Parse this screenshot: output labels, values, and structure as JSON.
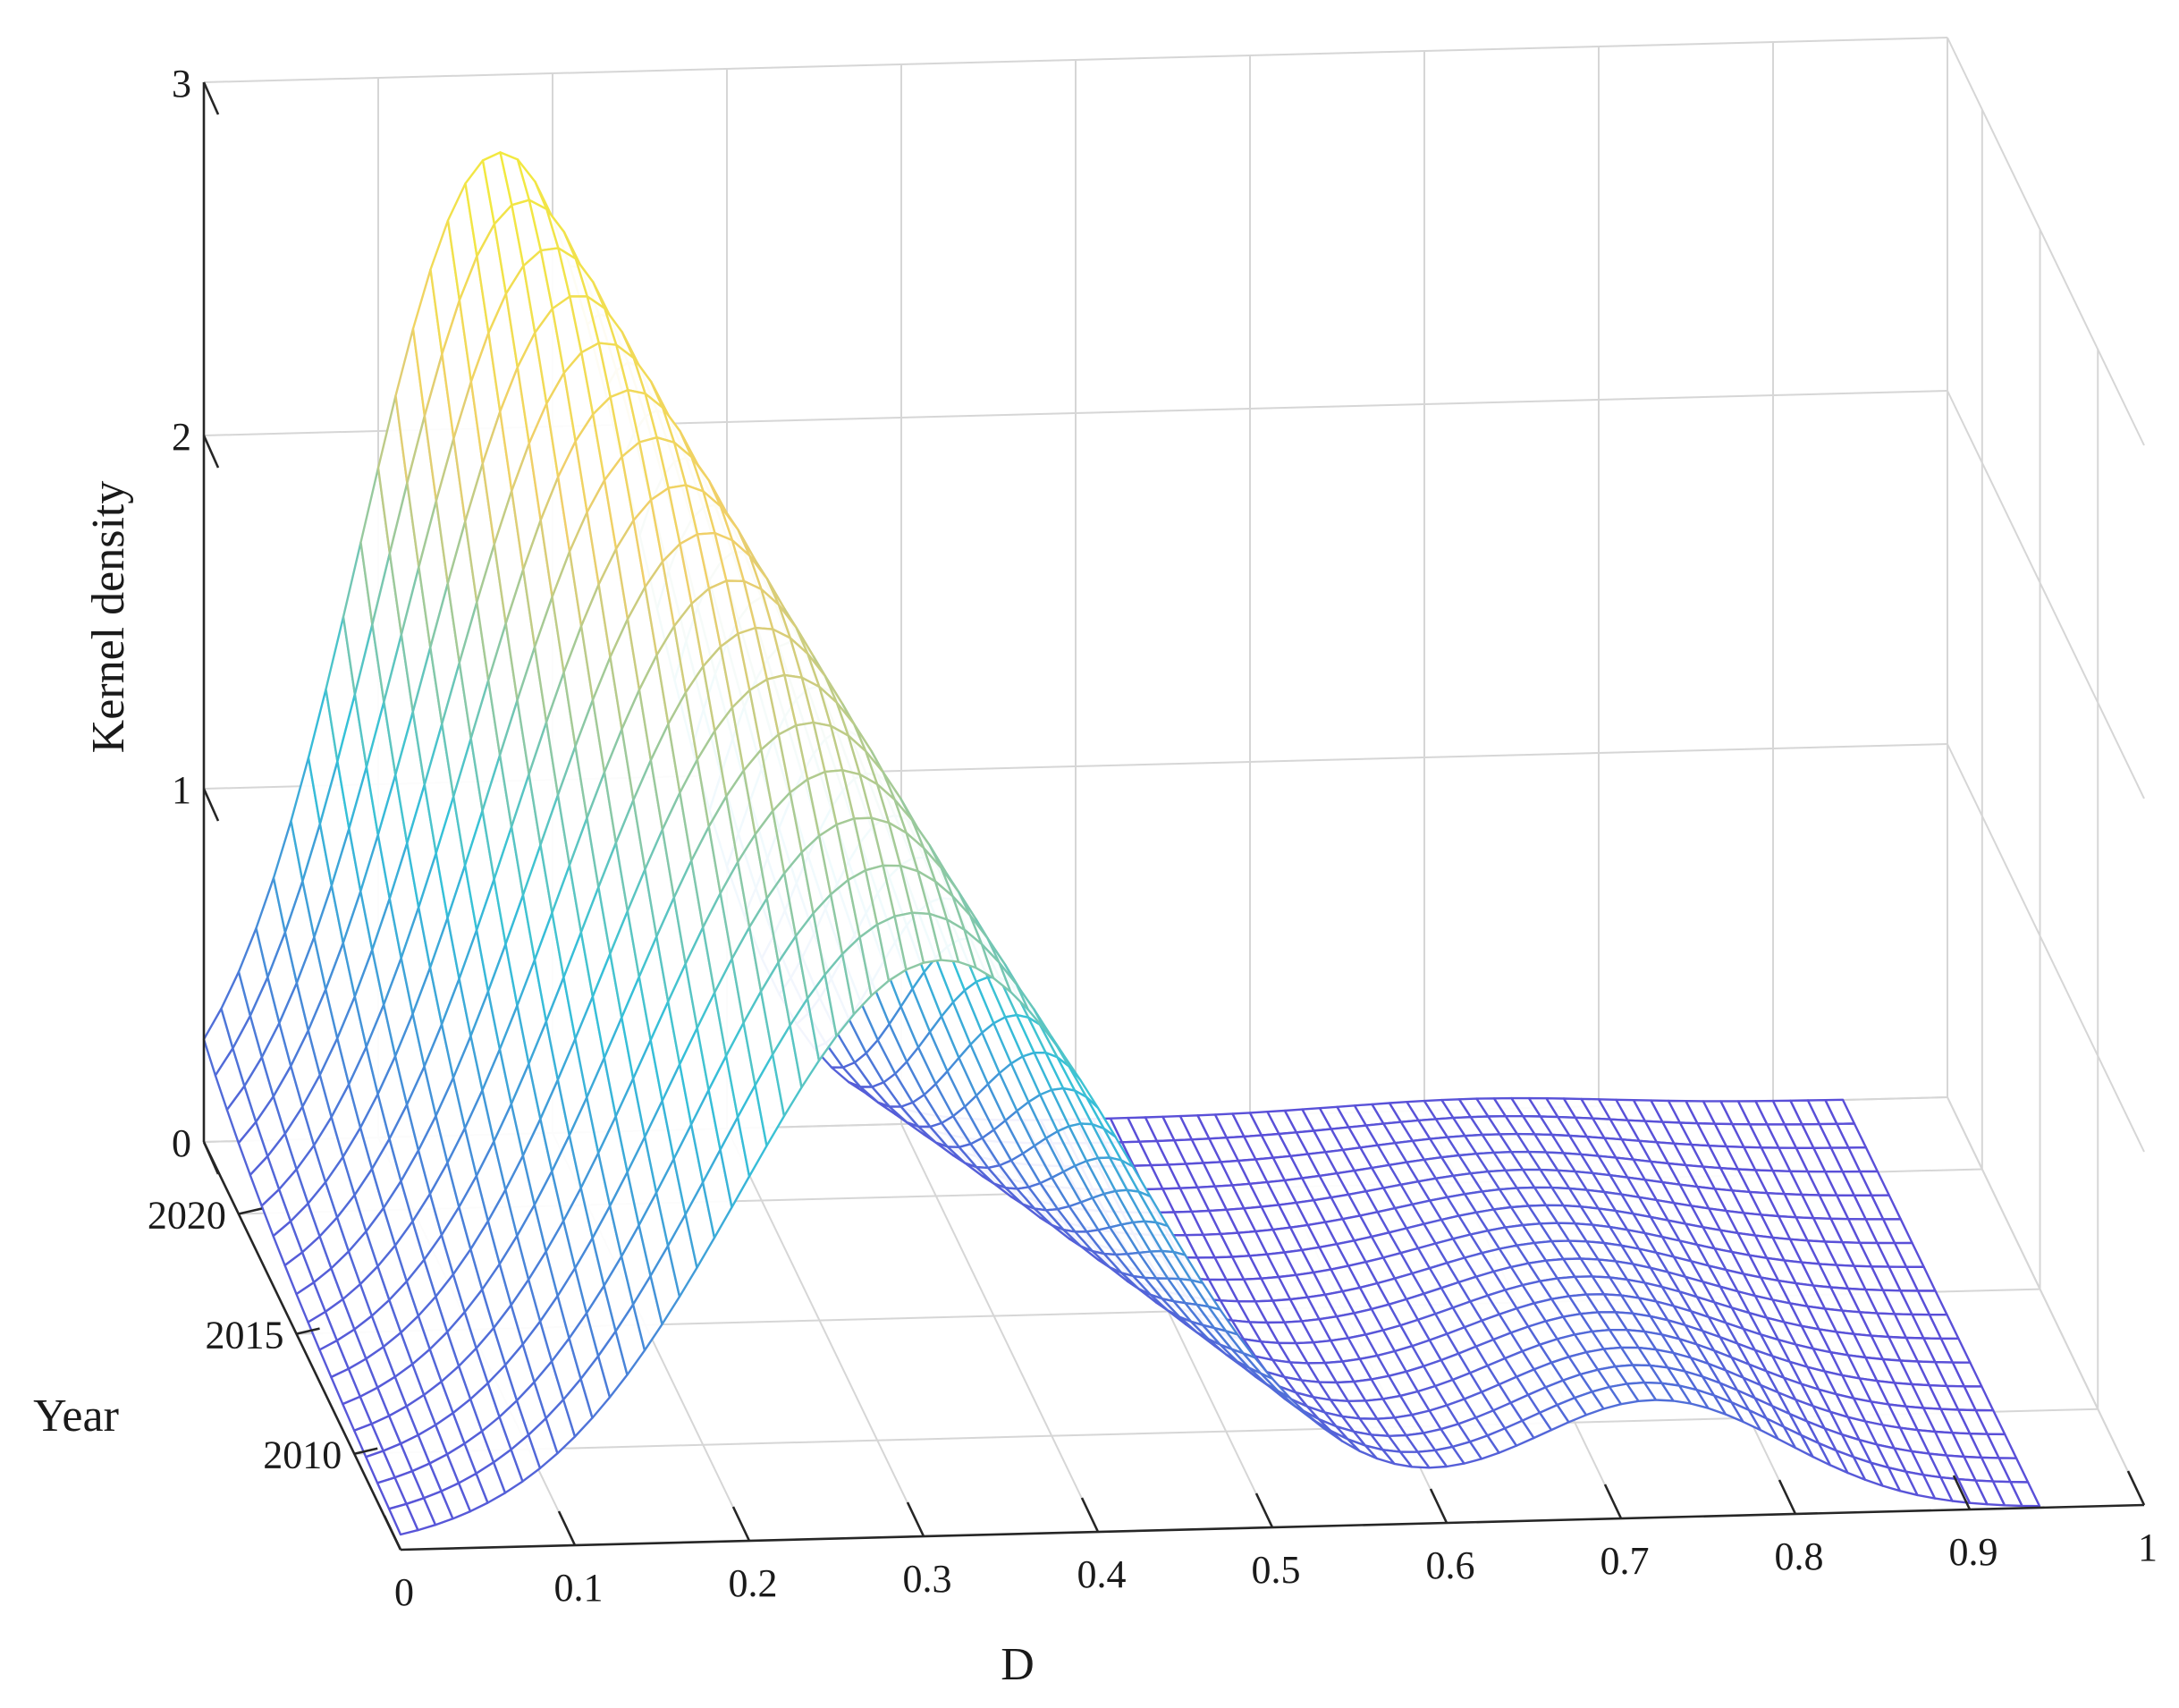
{
  "chart_data": {
    "type": "surface",
    "title": "",
    "xlabel": "D",
    "ylabel": "Year",
    "zlabel": "Kernel density",
    "xlim": [
      0,
      1
    ],
    "ylim": [
      2006,
      2023
    ],
    "zlim": [
      0,
      3
    ],
    "x_ticks": [
      "0",
      "0.1",
      "0.2",
      "0.3",
      "0.4",
      "0.5",
      "0.6",
      "0.7",
      "0.8",
      "0.9",
      "1"
    ],
    "y_ticks": [
      "2010",
      "2015",
      "2020"
    ],
    "z_ticks": [
      "0",
      "1",
      "2",
      "3"
    ],
    "grid": true,
    "colormap": [
      "#5a4fd8",
      "#35c2d8",
      "#f0cf6a",
      "#f2ec3a"
    ],
    "surface": {
      "d_range": [
        0,
        0.94
      ],
      "year_range": [
        2006,
        2023
      ],
      "peaks": [
        {
          "component": "main-peak",
          "year": 2006,
          "center_D": 0.31,
          "height": 1.63
        },
        {
          "component": "main-peak",
          "year": 2023,
          "center_D": 0.17,
          "height": 2.78
        },
        {
          "component": "second-peak",
          "year": 2006,
          "center_D": 0.72,
          "height": 0.33
        },
        {
          "component": "second-peak",
          "year": 2023,
          "center_D": 0.73,
          "height": 0.03
        }
      ]
    }
  }
}
